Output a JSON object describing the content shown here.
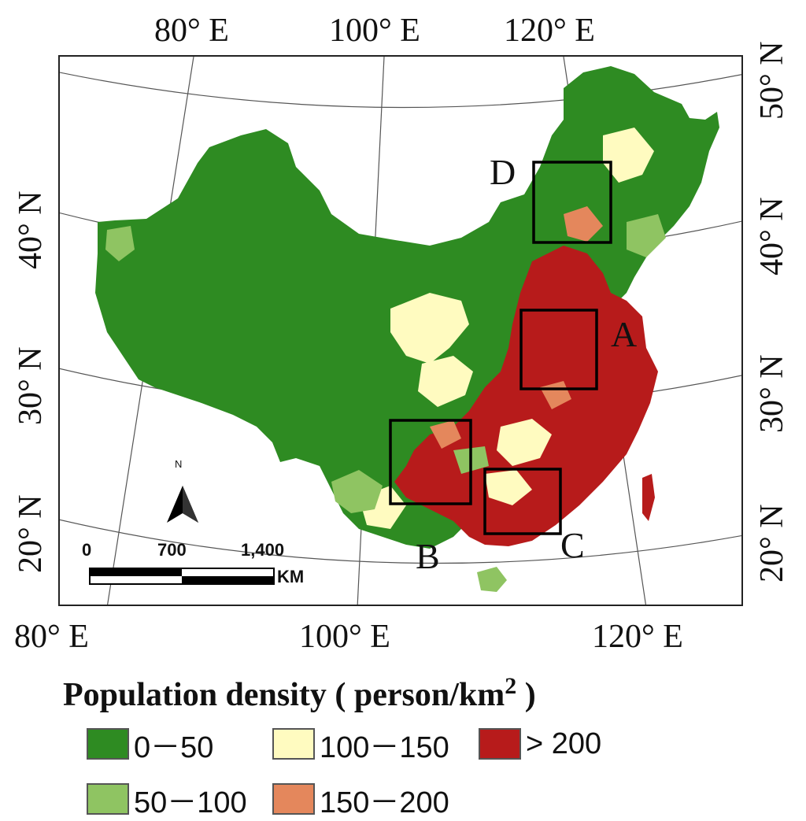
{
  "top_lon_labels": [
    "80° E",
    "100° E",
    "120° E"
  ],
  "bottom_lon_labels": [
    "80° E",
    "100° E",
    "120° E"
  ],
  "left_lat_labels": [
    "40° N",
    "30° N",
    "20° N"
  ],
  "right_lat_labels": [
    "50° N",
    "40° N",
    "30° N",
    "20° N"
  ],
  "regions": [
    "A",
    "B",
    "C",
    "D"
  ],
  "north_arrow_label": "N",
  "scale_bar": {
    "ticks": [
      "0",
      "700",
      "1,400"
    ],
    "unit": "KM"
  },
  "legend": {
    "title": "Population density ( person/km",
    "title_sup": "2",
    "title_end": " )",
    "items": [
      {
        "label": "0－50",
        "color": "#2e8b22"
      },
      {
        "label": "100－150",
        "color": "#fffbc0"
      },
      {
        "label": "> 200",
        "color": "#b71b1b"
      },
      {
        "label": "50－100",
        "color": "#8fc462"
      },
      {
        "label": "150－200",
        "color": "#e4875c"
      }
    ]
  },
  "colors": {
    "low": "#2e8b22",
    "low_mid": "#8fc462",
    "mid": "#fffbc0",
    "mid_high": "#e4875c",
    "high": "#b71b1b"
  }
}
